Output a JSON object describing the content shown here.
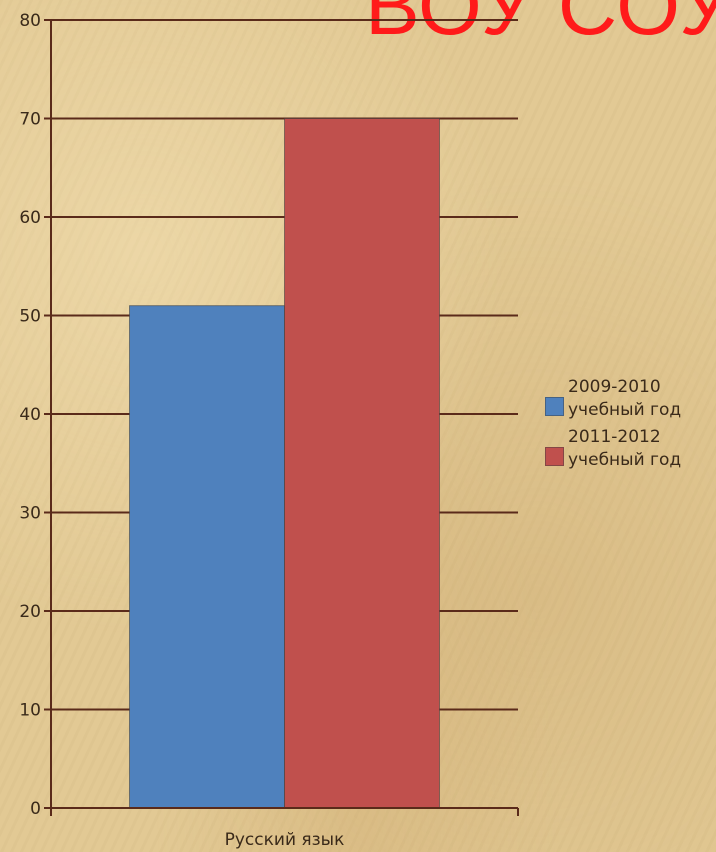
{
  "slide": {
    "header_text": "ВОУ СОУ"
  },
  "chart_data": {
    "type": "bar",
    "categories": [
      "Русский язык"
    ],
    "series": [
      {
        "name": "2009-2010 учебный год",
        "values": [
          51
        ],
        "color": "#4f81bd"
      },
      {
        "name": "2011-2012 учебный год",
        "values": [
          70
        ],
        "color": "#c0504d"
      }
    ],
    "ylim": [
      0,
      80
    ],
    "yticks": [
      0,
      10,
      20,
      30,
      40,
      50,
      60,
      70,
      80
    ],
    "grid": true,
    "legend_position": "right",
    "axis_color": "#5a2a1a"
  }
}
